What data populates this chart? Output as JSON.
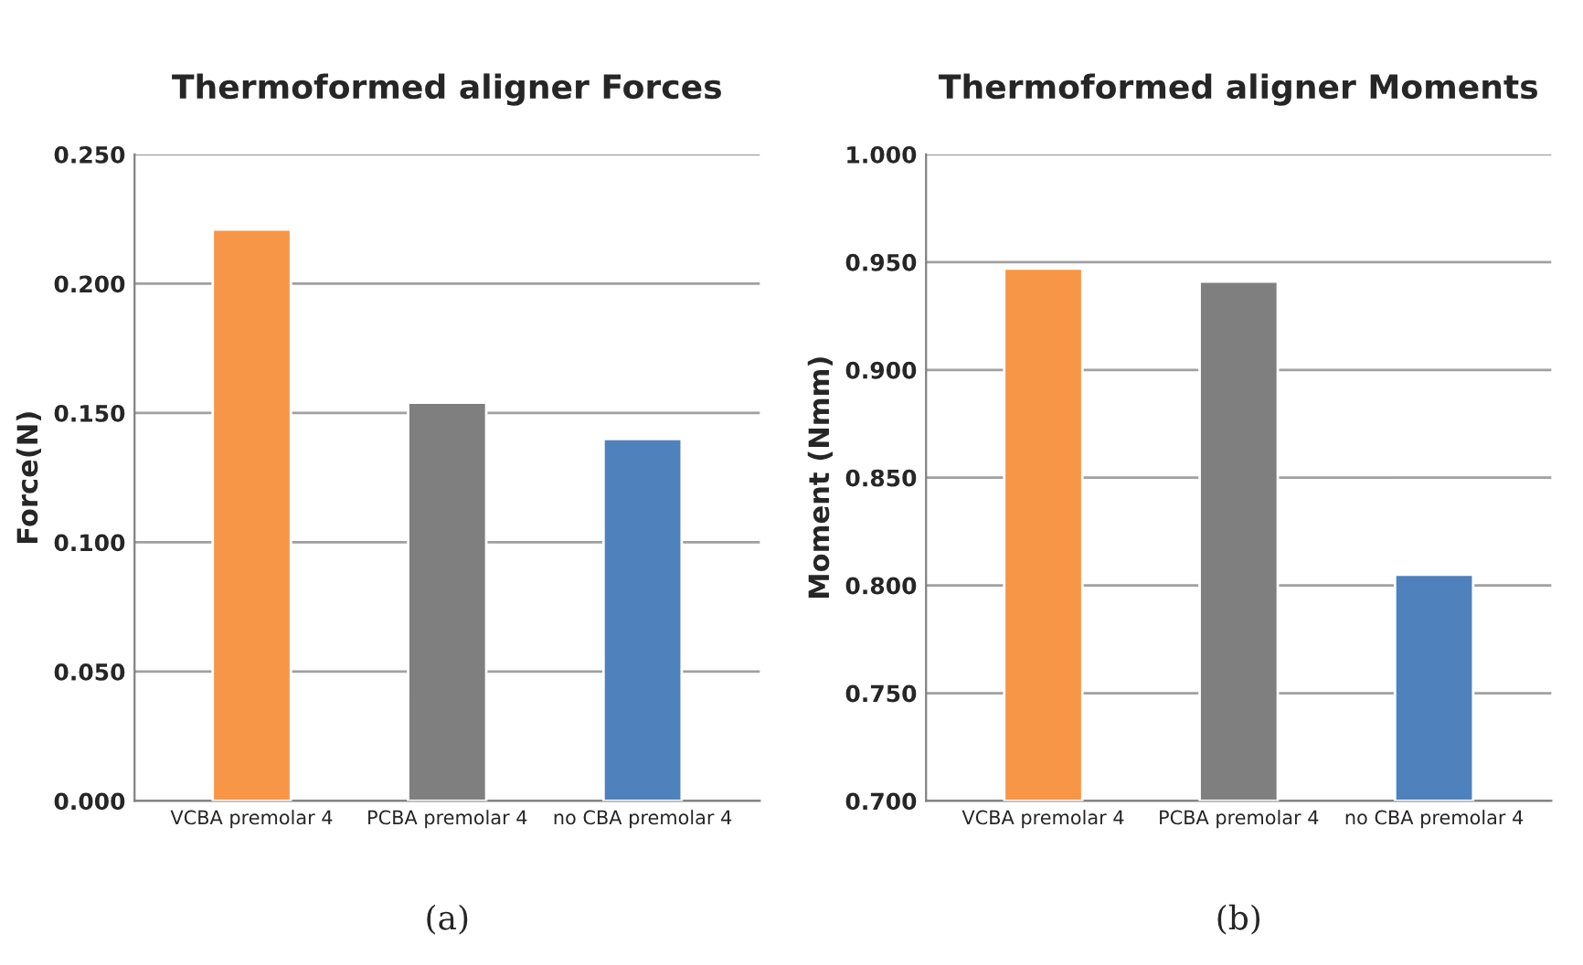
{
  "chart_data": [
    {
      "type": "bar",
      "title": "Thermoformed aligner Forces",
      "ylabel": "Force(N)",
      "categories": [
        "VCBA premolar 4",
        "PCBA premolar 4",
        "no CBA premolar 4"
      ],
      "values": [
        0.221,
        0.154,
        0.14
      ],
      "colors": [
        "#f79646",
        "#7f7f7f",
        "#4f81bd"
      ],
      "ylim": [
        0,
        0.25
      ],
      "yticks": [
        {
          "value": 0,
          "label": "0.000"
        },
        {
          "value": 0.05,
          "label": "0.050"
        },
        {
          "value": 0.1,
          "label": "0.100"
        },
        {
          "value": 0.15,
          "label": "0.150"
        },
        {
          "value": 0.2,
          "label": "0.200"
        },
        {
          "value": 0.25,
          "label": "0.250"
        }
      ],
      "grid": "y",
      "annotations": [
        "(a)"
      ]
    },
    {
      "type": "bar",
      "title": "Thermoformed aligner Moments",
      "ylabel": "Moment (Nmm)",
      "categories": [
        "VCBA premolar 4",
        "PCBA premolar 4",
        "no CBA premolar 4"
      ],
      "values": [
        0.947,
        0.941,
        0.805
      ],
      "colors": [
        "#f79646",
        "#7f7f7f",
        "#4f81bd"
      ],
      "ylim": [
        0.7,
        1.0
      ],
      "yticks": [
        {
          "value": 0.7,
          "label": "0.700"
        },
        {
          "value": 0.75,
          "label": "0.750"
        },
        {
          "value": 0.8,
          "label": "0.800"
        },
        {
          "value": 0.85,
          "label": "0.850"
        },
        {
          "value": 0.9,
          "label": "0.900"
        },
        {
          "value": 0.95,
          "label": "0.950"
        },
        {
          "value": 1.0,
          "label": "1.000"
        }
      ],
      "grid": "y",
      "annotations": [
        "(b)"
      ]
    }
  ]
}
